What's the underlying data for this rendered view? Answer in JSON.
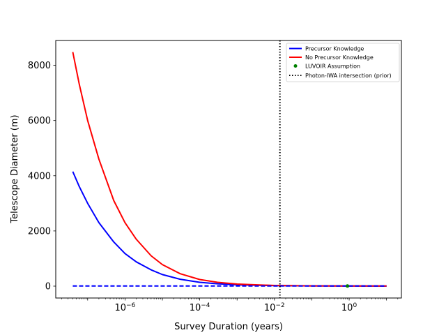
{
  "chart_data": {
    "type": "line",
    "title": "",
    "xlabel": "Survey Duration (years)",
    "ylabel": "Telescope Diameter (m)",
    "xscale": "log",
    "xlim": [
      1.4e-08,
      25
    ],
    "ylim": [
      -430,
      8900
    ],
    "grid": false,
    "legend_position": "top-right",
    "x_ticks": [
      {
        "value": 1e-06,
        "base": "10",
        "exp": "−6"
      },
      {
        "value": 0.0001,
        "base": "10",
        "exp": "−4"
      },
      {
        "value": 0.01,
        "base": "10",
        "exp": "−2"
      },
      {
        "value": 1,
        "base": "10",
        "exp": "0"
      }
    ],
    "y_ticks": [
      {
        "value": 0,
        "label": "0"
      },
      {
        "value": 2000,
        "label": "2000"
      },
      {
        "value": 4000,
        "label": "4000"
      },
      {
        "value": 6000,
        "label": "6000"
      },
      {
        "value": 8000,
        "label": "8000"
      }
    ],
    "series": [
      {
        "name": "Precursor Knowledge",
        "color": "#0000ff",
        "style": "solid",
        "x": [
          4e-08,
          6e-08,
          1e-07,
          2e-07,
          5e-07,
          1e-06,
          2e-06,
          5e-06,
          1e-05,
          3e-05,
          0.0001,
          0.0003,
          0.001,
          0.01,
          0.1,
          1,
          10
        ],
        "y": [
          4150,
          3600,
          3000,
          2300,
          1600,
          1180,
          880,
          590,
          420,
          250,
          140,
          85,
          48,
          18,
          8,
          5,
          4
        ]
      },
      {
        "name": "No Precursor Knowledge",
        "color": "#ff0000",
        "style": "solid",
        "x": [
          4e-08,
          6e-08,
          1e-07,
          2e-07,
          5e-07,
          1e-06,
          2e-06,
          5e-06,
          1e-05,
          3e-05,
          0.0001,
          0.0003,
          0.001,
          0.01,
          0.1,
          1,
          10
        ],
        "y": [
          8480,
          7300,
          6000,
          4600,
          3100,
          2300,
          1700,
          1100,
          780,
          450,
          240,
          140,
          75,
          25,
          10,
          6,
          5
        ]
      },
      {
        "name": "",
        "color": "#0000ff",
        "style": "dashed",
        "x": [
          4e-08,
          10
        ],
        "y": [
          5,
          5
        ]
      }
    ],
    "points": [
      {
        "name": "LUVOIR Assumption",
        "color": "#008000",
        "x": 0.9,
        "y": 5
      }
    ],
    "vlines": [
      {
        "name": "Photon-IWA intersection (prior)",
        "color": "#000000",
        "style": "dotted",
        "x": 0.014
      }
    ]
  }
}
